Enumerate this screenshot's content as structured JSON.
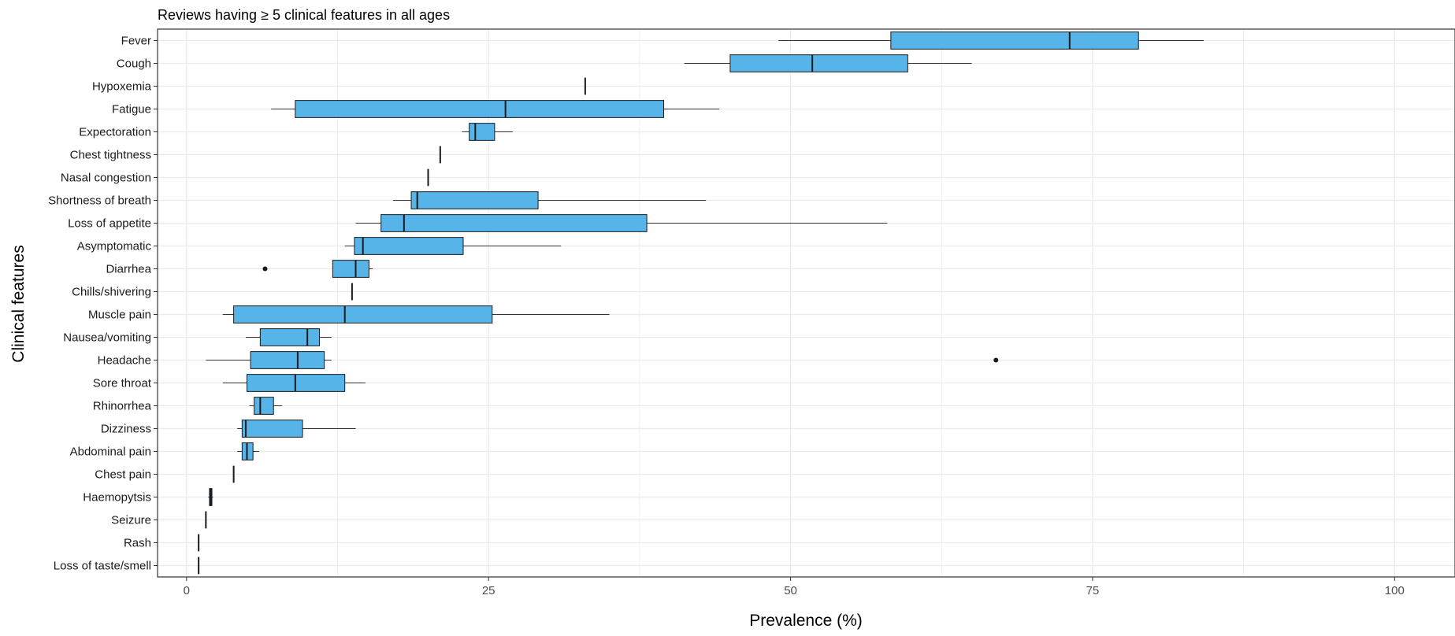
{
  "chart_data": {
    "type": "boxplot",
    "title": "Reviews having ≥ 5 clinical features in all ages",
    "xlabel": "Prevalence (%)",
    "ylabel": "Clinical features",
    "xlim": [
      -2.4,
      105
    ],
    "x_ticks": [
      0,
      25,
      50,
      75,
      100
    ],
    "grid": true,
    "colors": {
      "box_fill": "#56B4E9",
      "box_stroke": "#1a1a1a",
      "grid": "#ebebeb",
      "panel_border": "#333333"
    },
    "categories": [
      "Fever",
      "Cough",
      "Hypoxemia",
      "Fatigue",
      "Expectoration",
      "Chest tightness",
      "Nasal congestion",
      "Shortness of breath",
      "Loss of appetite",
      "Asymptomatic",
      "Diarrhea",
      "Chills/shivering",
      "Muscle pain",
      "Nausea/vomiting",
      "Headache",
      "Sore throat",
      "Rhinorrhea",
      "Dizziness",
      "Abdominal pain",
      "Chest pain",
      "Haemopytsis",
      "Seizure",
      "Rash",
      "Loss of taste/smell"
    ],
    "boxes": [
      {
        "label": "Fever",
        "whisker_low": 49,
        "q1": 58.3,
        "median": 73.1,
        "q3": 78.8,
        "whisker_high": 84.2,
        "outliers": []
      },
      {
        "label": "Cough",
        "whisker_low": 41.2,
        "q1": 45,
        "median": 51.8,
        "q3": 59.7,
        "whisker_high": 65,
        "outliers": []
      },
      {
        "label": "Hypoxemia",
        "whisker_low": 33,
        "q1": 33,
        "median": 33,
        "q3": 33,
        "whisker_high": 33,
        "outliers": []
      },
      {
        "label": "Fatigue",
        "whisker_low": 7,
        "q1": 9,
        "median": 26.4,
        "q3": 39.5,
        "whisker_high": 44.1,
        "outliers": []
      },
      {
        "label": "Expectoration",
        "whisker_low": 22.8,
        "q1": 23.4,
        "median": 23.9,
        "q3": 25.5,
        "whisker_high": 27,
        "outliers": []
      },
      {
        "label": "Chest tightness",
        "whisker_low": 21,
        "q1": 21,
        "median": 21,
        "q3": 21,
        "whisker_high": 21,
        "outliers": []
      },
      {
        "label": "Nasal congestion",
        "whisker_low": 20,
        "q1": 20,
        "median": 20,
        "q3": 20,
        "whisker_high": 20,
        "outliers": []
      },
      {
        "label": "Shortness of breath",
        "whisker_low": 17.1,
        "q1": 18.6,
        "median": 19.1,
        "q3": 29.1,
        "whisker_high": 43,
        "outliers": []
      },
      {
        "label": "Loss of appetite",
        "whisker_low": 14,
        "q1": 16.1,
        "median": 18,
        "q3": 38.1,
        "whisker_high": 58,
        "outliers": []
      },
      {
        "label": "Asymptomatic",
        "whisker_low": 13.1,
        "q1": 13.9,
        "median": 14.6,
        "q3": 22.9,
        "whisker_high": 31,
        "outliers": []
      },
      {
        "label": "Diarrhea",
        "whisker_low": 12.1,
        "q1": 12.1,
        "median": 14,
        "q3": 15.1,
        "whisker_high": 15.4,
        "outliers": [
          6.5
        ]
      },
      {
        "label": "Chills/shivering",
        "whisker_low": 13.7,
        "q1": 13.7,
        "median": 13.7,
        "q3": 13.7,
        "whisker_high": 13.7,
        "outliers": []
      },
      {
        "label": "Muscle pain",
        "whisker_low": 3,
        "q1": 3.9,
        "median": 13.1,
        "q3": 25.3,
        "whisker_high": 35,
        "outliers": []
      },
      {
        "label": "Nausea/vomiting",
        "whisker_low": 4.9,
        "q1": 6.1,
        "median": 10,
        "q3": 11,
        "whisker_high": 12,
        "outliers": []
      },
      {
        "label": "Headache",
        "whisker_low": 1.6,
        "q1": 5.3,
        "median": 9.2,
        "q3": 11.4,
        "whisker_high": 12,
        "outliers": [
          67
        ]
      },
      {
        "label": "Sore throat",
        "whisker_low": 3,
        "q1": 5,
        "median": 9,
        "q3": 13.1,
        "whisker_high": 14.8,
        "outliers": []
      },
      {
        "label": "Rhinorrhea",
        "whisker_low": 5.2,
        "q1": 5.6,
        "median": 6.1,
        "q3": 7.2,
        "whisker_high": 7.9,
        "outliers": []
      },
      {
        "label": "Dizziness",
        "whisker_low": 4.2,
        "q1": 4.6,
        "median": 4.9,
        "q3": 9.6,
        "whisker_high": 14,
        "outliers": []
      },
      {
        "label": "Abdominal pain",
        "whisker_low": 4.2,
        "q1": 4.6,
        "median": 5,
        "q3": 5.5,
        "whisker_high": 6,
        "outliers": []
      },
      {
        "label": "Chest pain",
        "whisker_low": 3.9,
        "q1": 3.9,
        "median": 3.9,
        "q3": 3.9,
        "whisker_high": 3.9,
        "outliers": []
      },
      {
        "label": "Haemopytsis",
        "whisker_low": 1.8,
        "q1": 1.9,
        "median": 2,
        "q3": 2.1,
        "whisker_high": 2.2,
        "outliers": []
      },
      {
        "label": "Seizure",
        "whisker_low": 1.6,
        "q1": 1.6,
        "median": 1.6,
        "q3": 1.6,
        "whisker_high": 1.6,
        "outliers": []
      },
      {
        "label": "Rash",
        "whisker_low": 1,
        "q1": 1,
        "median": 1,
        "q3": 1,
        "whisker_high": 1,
        "outliers": []
      },
      {
        "label": "Loss of taste/smell",
        "whisker_low": 1,
        "q1": 1,
        "median": 1,
        "q3": 1,
        "whisker_high": 1,
        "outliers": []
      }
    ]
  }
}
